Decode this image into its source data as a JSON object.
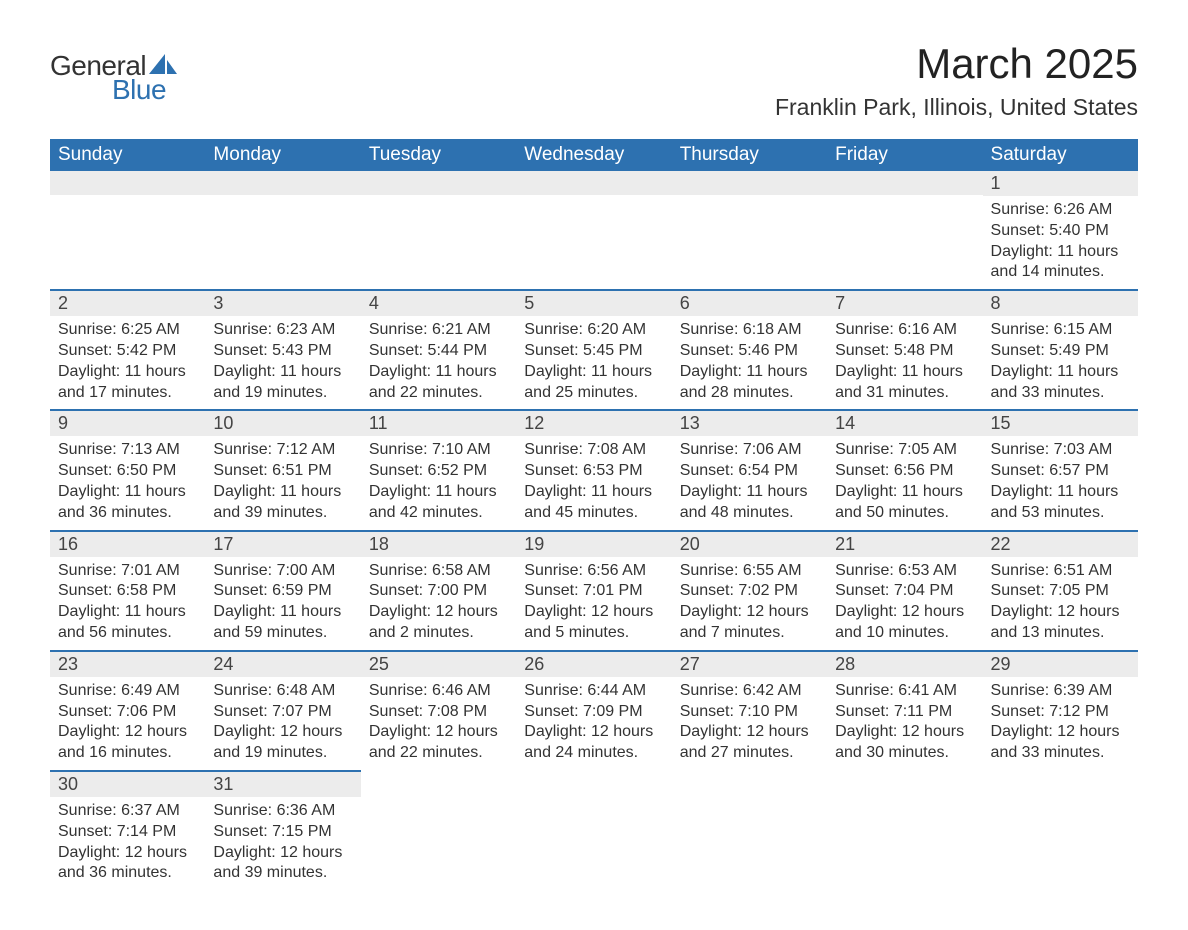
{
  "brand": {
    "general": "General",
    "blue": "Blue"
  },
  "title": "March 2025",
  "location": "Franklin Park, Illinois, United States",
  "colors": {
    "header_bg": "#2d71b0",
    "header_text": "#ffffff",
    "daynum_bg": "#ececec",
    "row_border": "#2d71b0",
    "body_text": "#333333",
    "page_bg": "#ffffff"
  },
  "day_headers": [
    "Sunday",
    "Monday",
    "Tuesday",
    "Wednesday",
    "Thursday",
    "Friday",
    "Saturday"
  ],
  "weeks": [
    [
      {
        "n": "",
        "sr": "",
        "ss": "",
        "dl1": "",
        "dl2": ""
      },
      {
        "n": "",
        "sr": "",
        "ss": "",
        "dl1": "",
        "dl2": ""
      },
      {
        "n": "",
        "sr": "",
        "ss": "",
        "dl1": "",
        "dl2": ""
      },
      {
        "n": "",
        "sr": "",
        "ss": "",
        "dl1": "",
        "dl2": ""
      },
      {
        "n": "",
        "sr": "",
        "ss": "",
        "dl1": "",
        "dl2": ""
      },
      {
        "n": "",
        "sr": "",
        "ss": "",
        "dl1": "",
        "dl2": ""
      },
      {
        "n": "1",
        "sr": "Sunrise: 6:26 AM",
        "ss": "Sunset: 5:40 PM",
        "dl1": "Daylight: 11 hours",
        "dl2": "and 14 minutes."
      }
    ],
    [
      {
        "n": "2",
        "sr": "Sunrise: 6:25 AM",
        "ss": "Sunset: 5:42 PM",
        "dl1": "Daylight: 11 hours",
        "dl2": "and 17 minutes."
      },
      {
        "n": "3",
        "sr": "Sunrise: 6:23 AM",
        "ss": "Sunset: 5:43 PM",
        "dl1": "Daylight: 11 hours",
        "dl2": "and 19 minutes."
      },
      {
        "n": "4",
        "sr": "Sunrise: 6:21 AM",
        "ss": "Sunset: 5:44 PM",
        "dl1": "Daylight: 11 hours",
        "dl2": "and 22 minutes."
      },
      {
        "n": "5",
        "sr": "Sunrise: 6:20 AM",
        "ss": "Sunset: 5:45 PM",
        "dl1": "Daylight: 11 hours",
        "dl2": "and 25 minutes."
      },
      {
        "n": "6",
        "sr": "Sunrise: 6:18 AM",
        "ss": "Sunset: 5:46 PM",
        "dl1": "Daylight: 11 hours",
        "dl2": "and 28 minutes."
      },
      {
        "n": "7",
        "sr": "Sunrise: 6:16 AM",
        "ss": "Sunset: 5:48 PM",
        "dl1": "Daylight: 11 hours",
        "dl2": "and 31 minutes."
      },
      {
        "n": "8",
        "sr": "Sunrise: 6:15 AM",
        "ss": "Sunset: 5:49 PM",
        "dl1": "Daylight: 11 hours",
        "dl2": "and 33 minutes."
      }
    ],
    [
      {
        "n": "9",
        "sr": "Sunrise: 7:13 AM",
        "ss": "Sunset: 6:50 PM",
        "dl1": "Daylight: 11 hours",
        "dl2": "and 36 minutes."
      },
      {
        "n": "10",
        "sr": "Sunrise: 7:12 AM",
        "ss": "Sunset: 6:51 PM",
        "dl1": "Daylight: 11 hours",
        "dl2": "and 39 minutes."
      },
      {
        "n": "11",
        "sr": "Sunrise: 7:10 AM",
        "ss": "Sunset: 6:52 PM",
        "dl1": "Daylight: 11 hours",
        "dl2": "and 42 minutes."
      },
      {
        "n": "12",
        "sr": "Sunrise: 7:08 AM",
        "ss": "Sunset: 6:53 PM",
        "dl1": "Daylight: 11 hours",
        "dl2": "and 45 minutes."
      },
      {
        "n": "13",
        "sr": "Sunrise: 7:06 AM",
        "ss": "Sunset: 6:54 PM",
        "dl1": "Daylight: 11 hours",
        "dl2": "and 48 minutes."
      },
      {
        "n": "14",
        "sr": "Sunrise: 7:05 AM",
        "ss": "Sunset: 6:56 PM",
        "dl1": "Daylight: 11 hours",
        "dl2": "and 50 minutes."
      },
      {
        "n": "15",
        "sr": "Sunrise: 7:03 AM",
        "ss": "Sunset: 6:57 PM",
        "dl1": "Daylight: 11 hours",
        "dl2": "and 53 minutes."
      }
    ],
    [
      {
        "n": "16",
        "sr": "Sunrise: 7:01 AM",
        "ss": "Sunset: 6:58 PM",
        "dl1": "Daylight: 11 hours",
        "dl2": "and 56 minutes."
      },
      {
        "n": "17",
        "sr": "Sunrise: 7:00 AM",
        "ss": "Sunset: 6:59 PM",
        "dl1": "Daylight: 11 hours",
        "dl2": "and 59 minutes."
      },
      {
        "n": "18",
        "sr": "Sunrise: 6:58 AM",
        "ss": "Sunset: 7:00 PM",
        "dl1": "Daylight: 12 hours",
        "dl2": "and 2 minutes."
      },
      {
        "n": "19",
        "sr": "Sunrise: 6:56 AM",
        "ss": "Sunset: 7:01 PM",
        "dl1": "Daylight: 12 hours",
        "dl2": "and 5 minutes."
      },
      {
        "n": "20",
        "sr": "Sunrise: 6:55 AM",
        "ss": "Sunset: 7:02 PM",
        "dl1": "Daylight: 12 hours",
        "dl2": "and 7 minutes."
      },
      {
        "n": "21",
        "sr": "Sunrise: 6:53 AM",
        "ss": "Sunset: 7:04 PM",
        "dl1": "Daylight: 12 hours",
        "dl2": "and 10 minutes."
      },
      {
        "n": "22",
        "sr": "Sunrise: 6:51 AM",
        "ss": "Sunset: 7:05 PM",
        "dl1": "Daylight: 12 hours",
        "dl2": "and 13 minutes."
      }
    ],
    [
      {
        "n": "23",
        "sr": "Sunrise: 6:49 AM",
        "ss": "Sunset: 7:06 PM",
        "dl1": "Daylight: 12 hours",
        "dl2": "and 16 minutes."
      },
      {
        "n": "24",
        "sr": "Sunrise: 6:48 AM",
        "ss": "Sunset: 7:07 PM",
        "dl1": "Daylight: 12 hours",
        "dl2": "and 19 minutes."
      },
      {
        "n": "25",
        "sr": "Sunrise: 6:46 AM",
        "ss": "Sunset: 7:08 PM",
        "dl1": "Daylight: 12 hours",
        "dl2": "and 22 minutes."
      },
      {
        "n": "26",
        "sr": "Sunrise: 6:44 AM",
        "ss": "Sunset: 7:09 PM",
        "dl1": "Daylight: 12 hours",
        "dl2": "and 24 minutes."
      },
      {
        "n": "27",
        "sr": "Sunrise: 6:42 AM",
        "ss": "Sunset: 7:10 PM",
        "dl1": "Daylight: 12 hours",
        "dl2": "and 27 minutes."
      },
      {
        "n": "28",
        "sr": "Sunrise: 6:41 AM",
        "ss": "Sunset: 7:11 PM",
        "dl1": "Daylight: 12 hours",
        "dl2": "and 30 minutes."
      },
      {
        "n": "29",
        "sr": "Sunrise: 6:39 AM",
        "ss": "Sunset: 7:12 PM",
        "dl1": "Daylight: 12 hours",
        "dl2": "and 33 minutes."
      }
    ],
    [
      {
        "n": "30",
        "sr": "Sunrise: 6:37 AM",
        "ss": "Sunset: 7:14 PM",
        "dl1": "Daylight: 12 hours",
        "dl2": "and 36 minutes."
      },
      {
        "n": "31",
        "sr": "Sunrise: 6:36 AM",
        "ss": "Sunset: 7:15 PM",
        "dl1": "Daylight: 12 hours",
        "dl2": "and 39 minutes."
      },
      {
        "n": "",
        "sr": "",
        "ss": "",
        "dl1": "",
        "dl2": ""
      },
      {
        "n": "",
        "sr": "",
        "ss": "",
        "dl1": "",
        "dl2": ""
      },
      {
        "n": "",
        "sr": "",
        "ss": "",
        "dl1": "",
        "dl2": ""
      },
      {
        "n": "",
        "sr": "",
        "ss": "",
        "dl1": "",
        "dl2": ""
      },
      {
        "n": "",
        "sr": "",
        "ss": "",
        "dl1": "",
        "dl2": ""
      }
    ]
  ]
}
